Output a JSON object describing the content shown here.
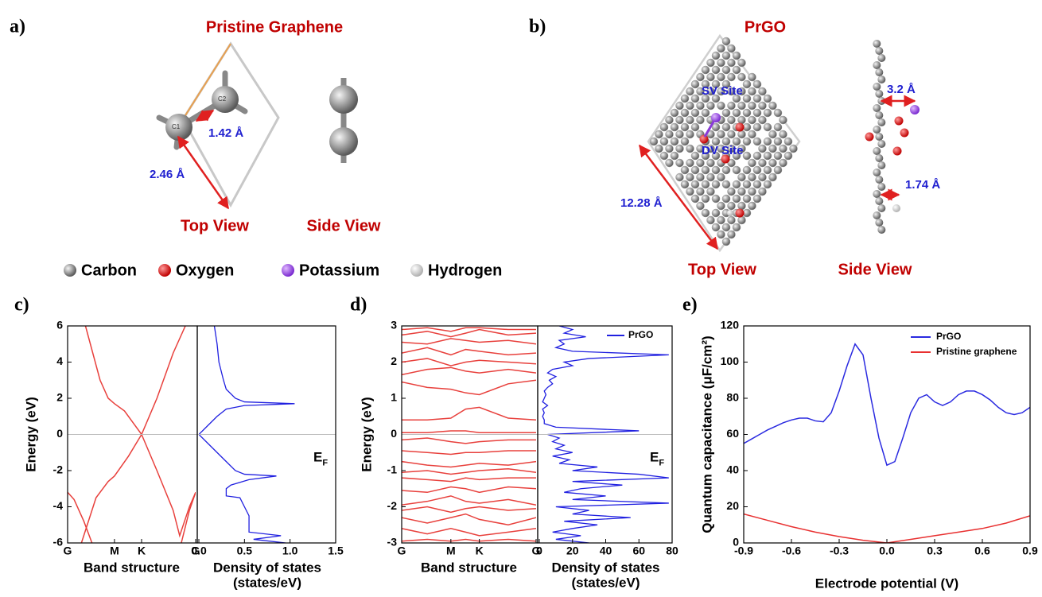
{
  "diagrams": {
    "a": {
      "panel_label": "a)",
      "title": "Pristine Graphene",
      "atom_1": "C1",
      "atom_2": "C2",
      "bond_length": "1.42 Å",
      "lattice_length": "2.46 Å",
      "top_view": "Top View",
      "side_view": "Side View"
    },
    "legend": [
      "Carbon",
      "Oxygen",
      "Potassium",
      "Hydrogen"
    ],
    "b": {
      "panel_label": "b)",
      "title": "PrGO",
      "sv_site": "SV Site",
      "dv_site": "DV Site",
      "cell_length": "12.28 Å",
      "k_distance": "3.2 Å",
      "h_distance": "1.74 Å",
      "top_view": "Top View",
      "side_view": "Side View"
    }
  },
  "chart_data": [
    {
      "type": "band_dos",
      "panel_label": "c)",
      "ylabel": "Energy (eV)",
      "ylim": [
        -6,
        6
      ],
      "yticks": [
        -6,
        -4,
        -2,
        0,
        2,
        4,
        6
      ],
      "fermi_label": {
        "main": "E",
        "sub": "F"
      },
      "band": {
        "xlabel": "Band structure",
        "xlim": [
          0,
          1.577
        ],
        "color": "#e8403c",
        "xticks": [
          {
            "value": 0,
            "label": "G"
          },
          {
            "value": 0.577,
            "label": "M"
          },
          {
            "value": 0.911,
            "label": "K"
          },
          {
            "value": 1.577,
            "label": "G"
          }
        ],
        "series": [
          {
            "x": [
              0.22,
              0.4,
              0.5,
              0.577,
              0.7,
              0.911,
              1.1,
              1.3,
              1.45
            ],
            "values": [
              6,
              3,
              2,
              1.7,
              1.3,
              0,
              2,
              4.5,
              6
            ]
          },
          {
            "x": [
              0.17,
              0.35,
              0.5,
              0.577,
              0.75,
              0.911,
              1.1,
              1.3,
              1.38,
              1.5,
              1.577
            ],
            "values": [
              -6,
              -3.5,
              -2.6,
              -2.3,
              -1.2,
              0,
              -2,
              -4.2,
              -5.6,
              -4,
              -3.2
            ]
          },
          {
            "x": [
              0,
              0.08,
              0.2,
              0.3
            ],
            "values": [
              -3.2,
              -3.6,
              -4.8,
              -6
            ]
          },
          {
            "x": [
              1.4,
              1.5,
              1.577
            ],
            "values": [
              -6,
              -4.2,
              -3.2
            ]
          }
        ]
      },
      "dos": {
        "xlabel": [
          "Density of states",
          "(states/eV)"
        ],
        "xlim": [
          0,
          1.5
        ],
        "color": "#2020e0",
        "xticks": [
          {
            "value": 0,
            "label": "0.0"
          },
          0.5,
          {
            "value": 1,
            "label": "1.0"
          },
          1.5
        ],
        "energy": [
          -6,
          -5.8,
          -5.6,
          -5.4,
          -5,
          -4.5,
          -4,
          -3.5,
          -3.4,
          -3,
          -2.8,
          -2.5,
          -2.3,
          -2.2,
          -2,
          -1.5,
          -1,
          -0.5,
          0,
          0.5,
          1,
          1.4,
          1.6,
          1.7,
          1.8,
          2,
          2.5,
          3,
          4,
          5,
          6
        ],
        "values": [
          0.95,
          0.6,
          0.9,
          0.55,
          0.55,
          0.55,
          0.5,
          0.45,
          0.3,
          0.3,
          0.35,
          0.55,
          0.85,
          0.5,
          0.4,
          0.3,
          0.2,
          0.1,
          0,
          0.1,
          0.2,
          0.3,
          0.5,
          1.05,
          0.5,
          0.4,
          0.3,
          0.27,
          0.22,
          0.2,
          0.17
        ]
      }
    },
    {
      "type": "band_dos",
      "panel_label": "d)",
      "ylabel": "Energy (eV)",
      "ylim": [
        -3,
        3
      ],
      "yticks": [
        -3,
        -2,
        -1,
        0,
        1,
        2,
        3
      ],
      "fermi_label": {
        "main": "E",
        "sub": "F"
      },
      "band": {
        "xlabel": "Band structure",
        "xlim": [
          0,
          1.577
        ],
        "color": "#e8403c",
        "xticks": [
          {
            "value": 0,
            "label": "G"
          },
          {
            "value": 0.577,
            "label": "M"
          },
          {
            "value": 0.911,
            "label": "K"
          },
          {
            "value": 1.577,
            "label": "G"
          }
        ],
        "x": [
          0,
          0.3,
          0.577,
          0.75,
          0.911,
          1.25,
          1.577
        ],
        "series": [
          {
            "values": [
              -2.95,
              -2.9,
              -2.95,
              -2.9,
              -2.95,
              -2.9,
              -2.95
            ]
          },
          {
            "values": [
              -2.6,
              -2.75,
              -2.6,
              -2.7,
              -2.8,
              -2.7,
              -2.6
            ]
          },
          {
            "values": [
              -2.3,
              -2.45,
              -2.3,
              -2.2,
              -2.35,
              -2.5,
              -2.3
            ]
          },
          {
            "values": [
              -2.1,
              -2.0,
              -2.15,
              -2.05,
              -2.0,
              -2.1,
              -2.05
            ]
          },
          {
            "values": [
              -1.95,
              -1.85,
              -1.7,
              -1.85,
              -1.9,
              -1.8,
              -1.95
            ]
          },
          {
            "values": [
              -1.55,
              -1.6,
              -1.45,
              -1.5,
              -1.6,
              -1.45,
              -1.5
            ]
          },
          {
            "values": [
              -1.2,
              -1.25,
              -1.3,
              -1.2,
              -1.25,
              -1.2,
              -1.2
            ]
          },
          {
            "values": [
              -1.05,
              -1.0,
              -1.1,
              -1.05,
              -1.0,
              -0.95,
              -1.05
            ]
          },
          {
            "values": [
              -0.75,
              -0.85,
              -0.9,
              -0.85,
              -0.8,
              -0.85,
              -0.75
            ]
          },
          {
            "values": [
              -0.45,
              -0.5,
              -0.55,
              -0.5,
              -0.5,
              -0.45,
              -0.45
            ]
          },
          {
            "values": [
              -0.15,
              -0.1,
              -0.2,
              -0.25,
              -0.2,
              -0.15,
              -0.15
            ]
          },
          {
            "values": [
              0.05,
              0.05,
              0.1,
              0.1,
              0.05,
              0.05,
              0.05
            ]
          },
          {
            "values": [
              0.4,
              0.4,
              0.45,
              0.7,
              0.75,
              0.45,
              0.4
            ]
          },
          {
            "values": [
              1.45,
              1.3,
              1.25,
              1.15,
              1.1,
              1.4,
              1.5
            ]
          },
          {
            "values": [
              1.65,
              1.8,
              1.85,
              1.75,
              1.7,
              1.8,
              1.7
            ]
          },
          {
            "values": [
              2.0,
              2.1,
              1.9,
              2.0,
              2.05,
              2.0,
              1.95
            ]
          },
          {
            "values": [
              2.25,
              2.4,
              2.2,
              2.35,
              2.3,
              2.2,
              2.25
            ]
          },
          {
            "values": [
              2.55,
              2.5,
              2.65,
              2.6,
              2.55,
              2.6,
              2.5
            ]
          },
          {
            "values": [
              2.75,
              2.85,
              2.7,
              2.8,
              2.9,
              2.75,
              2.8
            ]
          },
          {
            "values": [
              2.9,
              2.95,
              2.85,
              2.95,
              2.95,
              2.9,
              2.9
            ]
          }
        ]
      },
      "dos": {
        "xlabel": [
          "Density of states",
          "(states/eV)"
        ],
        "xlim": [
          0,
          80
        ],
        "color": "#2020e0",
        "name": "PrGO",
        "xticks": [
          0,
          20,
          40,
          60,
          80
        ],
        "energy": [
          -3,
          -2.9,
          -2.8,
          -2.7,
          -2.6,
          -2.5,
          -2.4,
          -2.3,
          -2.2,
          -2.1,
          -2,
          -1.9,
          -1.8,
          -1.7,
          -1.6,
          -1.5,
          -1.4,
          -1.3,
          -1.2,
          -1.1,
          -1,
          -0.9,
          -0.8,
          -0.7,
          -0.6,
          -0.5,
          -0.4,
          -0.3,
          -0.2,
          -0.1,
          0,
          0.1,
          0.2,
          0.3,
          0.4,
          0.5,
          0.6,
          0.7,
          0.8,
          0.9,
          1,
          1.1,
          1.2,
          1.3,
          1.4,
          1.5,
          1.6,
          1.7,
          1.8,
          1.9,
          2,
          2.1,
          2.2,
          2.3,
          2.4,
          2.5,
          2.6,
          2.7,
          2.8,
          2.9,
          3
        ],
        "values": [
          30,
          10,
          25,
          8,
          20,
          35,
          15,
          55,
          20,
          30,
          10,
          78,
          20,
          40,
          15,
          25,
          50,
          20,
          78,
          60,
          20,
          35,
          12,
          18,
          8,
          20,
          10,
          15,
          8,
          12,
          5,
          60,
          10,
          3,
          3,
          2,
          3,
          2,
          5,
          2,
          3,
          4,
          3,
          5,
          8,
          6,
          10,
          5,
          8,
          20,
          15,
          30,
          78,
          20,
          10,
          15,
          12,
          28,
          15,
          20,
          12
        ]
      }
    },
    {
      "type": "line",
      "panel_label": "e)",
      "xlabel": "Electrode potential (V)",
      "ylabel": "Quantum capacitance (μF/cm²)",
      "xlim": [
        -0.9,
        0.9
      ],
      "ylim": [
        0,
        120
      ],
      "xticks": [
        -0.9,
        -0.6,
        -0.3,
        {
          "value": 0,
          "label": "0.0"
        },
        0.3,
        0.6,
        0.9
      ],
      "yticks": [
        0,
        20,
        40,
        60,
        80,
        100,
        120
      ],
      "series": [
        {
          "name": "PrGO",
          "color": "#2a2ae0",
          "x": [
            -0.9,
            -0.85,
            -0.8,
            -0.75,
            -0.7,
            -0.65,
            -0.6,
            -0.55,
            -0.5,
            -0.45,
            -0.4,
            -0.35,
            -0.3,
            -0.25,
            -0.2,
            -0.15,
            -0.1,
            -0.05,
            0,
            0.05,
            0.1,
            0.15,
            0.2,
            0.25,
            0.3,
            0.35,
            0.4,
            0.45,
            0.5,
            0.55,
            0.6,
            0.65,
            0.7,
            0.75,
            0.8,
            0.85,
            0.9
          ],
          "values": [
            55,
            57.5,
            60,
            62.5,
            64.5,
            66.5,
            68,
            69,
            69,
            67.5,
            67,
            72,
            84,
            98,
            110,
            104,
            80,
            58,
            43,
            45,
            58,
            72,
            80,
            82,
            78,
            76,
            78,
            82,
            84,
            84,
            82,
            79,
            75,
            72,
            71,
            72,
            75
          ]
        },
        {
          "name": "Pristine graphene",
          "color": "#e83030",
          "x": [
            -0.9,
            -0.75,
            -0.6,
            -0.45,
            -0.3,
            -0.15,
            0,
            0.15,
            0.3,
            0.45,
            0.6,
            0.75,
            0.9
          ],
          "values": [
            16,
            12.5,
            9,
            6,
            3.5,
            1.5,
            0,
            2,
            4,
            6,
            8,
            11,
            15
          ]
        }
      ]
    }
  ]
}
